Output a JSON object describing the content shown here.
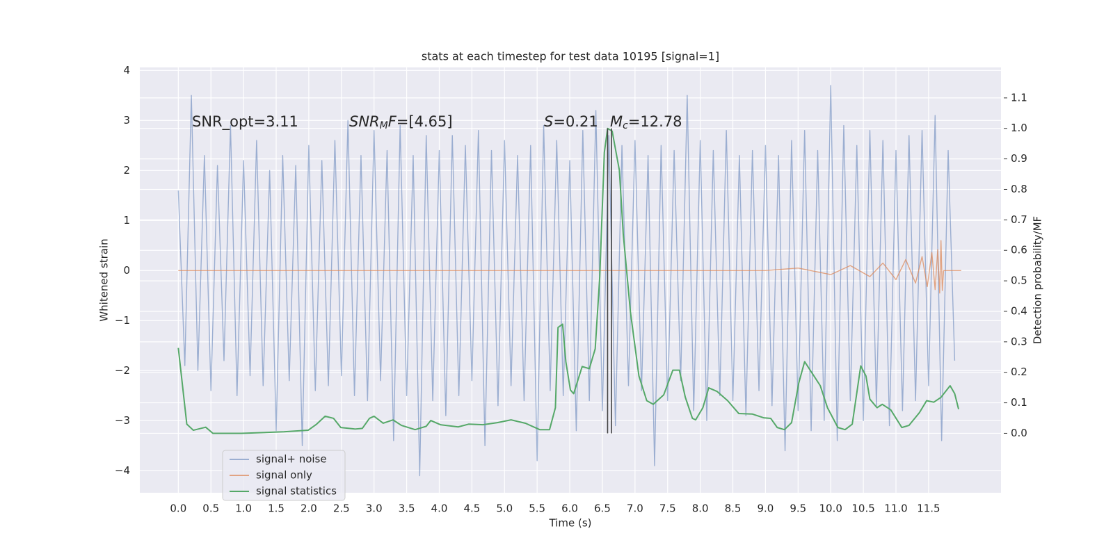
{
  "chart_data": {
    "type": "line",
    "title": "stats at each timestep for test data 10195 [signal=1]",
    "xlabel": "Time (s)",
    "ylabel": "Whitened strain",
    "y2label": "Detection probability/MF",
    "xlim": [
      -0.59,
      12.61
    ],
    "ylim": [
      -4.44,
      4.06
    ],
    "y2lim": [
      -0.195,
      1.2
    ],
    "xticks": [
      {
        "value": 0,
        "label": "0.0"
      },
      0.5,
      {
        "value": 1,
        "label": "1.0"
      },
      1.5,
      {
        "value": 2,
        "label": "2.0"
      },
      2.5,
      {
        "value": 3,
        "label": "3.0"
      },
      3.5,
      {
        "value": 4,
        "label": "4.0"
      },
      4.5,
      {
        "value": 5,
        "label": "5.0"
      },
      5.5,
      {
        "value": 6,
        "label": "6.0"
      },
      6.5,
      {
        "value": 7,
        "label": "7.0"
      },
      7.5,
      {
        "value": 8,
        "label": "8.0"
      },
      8.5,
      {
        "value": 9,
        "label": "9.0"
      },
      9.5,
      {
        "value": 10,
        "label": "10.0"
      },
      10.5,
      {
        "value": 11,
        "label": "11.0"
      },
      11.5
    ],
    "yticks": [
      {
        "value": -4,
        "label": "−4"
      },
      {
        "value": -3,
        "label": "−3"
      },
      {
        "value": -2,
        "label": "−2"
      },
      {
        "value": -1,
        "label": "−1"
      },
      0,
      1,
      2,
      3,
      4
    ],
    "y2ticks": [
      {
        "value": 0,
        "label": "0.0"
      },
      0.1,
      0.2,
      0.3,
      0.4,
      0.5,
      0.6,
      0.7,
      0.8,
      0.9,
      {
        "value": 1,
        "label": "1.0"
      },
      1.1
    ],
    "grid": true,
    "legend": "lower left",
    "series": [
      {
        "name": "signal+ noise",
        "color": "#4c72b0",
        "opacity": 0.5,
        "x": [
          0.0,
          0.1,
          0.2,
          0.3,
          0.4,
          0.5,
          0.6,
          0.7,
          0.8,
          0.9,
          1.0,
          1.1,
          1.2,
          1.3,
          1.4,
          1.5,
          1.6,
          1.7,
          1.8,
          1.9,
          2.0,
          2.1,
          2.2,
          2.3,
          2.4,
          2.5,
          2.6,
          2.7,
          2.8,
          2.9,
          3.0,
          3.1,
          3.2,
          3.3,
          3.4,
          3.5,
          3.6,
          3.7,
          3.8,
          3.9,
          4.0,
          4.1,
          4.2,
          4.3,
          4.4,
          4.5,
          4.6,
          4.7,
          4.8,
          4.9,
          5.0,
          5.1,
          5.2,
          5.3,
          5.4,
          5.5,
          5.6,
          5.7,
          5.8,
          5.9,
          6.0,
          6.1,
          6.2,
          6.3,
          6.4,
          6.5,
          6.6,
          6.7,
          6.8,
          6.9,
          7.0,
          7.1,
          7.2,
          7.3,
          7.4,
          7.5,
          7.6,
          7.7,
          7.8,
          7.9,
          8.0,
          8.1,
          8.2,
          8.3,
          8.4,
          8.5,
          8.6,
          8.7,
          8.8,
          8.9,
          9.0,
          9.1,
          9.2,
          9.3,
          9.4,
          9.5,
          9.6,
          9.7,
          9.8,
          9.9,
          10.0,
          10.1,
          10.2,
          10.3,
          10.4,
          10.5,
          10.6,
          10.7,
          10.8,
          10.9,
          11.0,
          11.1,
          11.2,
          11.3,
          11.4,
          11.5,
          11.6,
          11.7,
          11.8,
          11.9
        ],
        "values": [
          1.6,
          -1.9,
          3.5,
          -2.0,
          2.3,
          -2.4,
          2.1,
          -1.8,
          2.9,
          -2.5,
          2.2,
          -2.1,
          2.6,
          -2.3,
          2.0,
          -3.2,
          2.3,
          -2.2,
          2.1,
          -3.5,
          2.5,
          -2.4,
          2.2,
          -2.3,
          2.6,
          -2.1,
          3.0,
          -2.5,
          2.3,
          -2.6,
          2.8,
          -2.2,
          2.4,
          -3.4,
          2.9,
          -2.5,
          2.3,
          -4.1,
          2.7,
          -2.6,
          2.4,
          -2.9,
          2.7,
          -2.5,
          2.5,
          -2.2,
          2.8,
          -3.5,
          2.4,
          -2.7,
          2.6,
          -2.3,
          2.3,
          -2.6,
          2.5,
          -3.8,
          2.9,
          -2.4,
          2.6,
          -2.5,
          2.2,
          -3.2,
          2.8,
          -2.6,
          3.2,
          -2.8,
          2.7,
          -3.1,
          2.5,
          -2.3,
          2.6,
          -2.4,
          2.3,
          -3.9,
          2.5,
          -2.6,
          2.4,
          -2.2,
          3.5,
          -2.8,
          2.6,
          -3.0,
          2.4,
          -2.5,
          2.8,
          -2.6,
          2.3,
          -2.9,
          2.4,
          -2.4,
          2.5,
          -2.7,
          2.3,
          -3.6,
          2.6,
          -2.8,
          2.8,
          -3.2,
          2.4,
          -3.0,
          3.7,
          -3.4,
          2.9,
          -2.6,
          2.5,
          -3.0,
          2.8,
          -2.7,
          2.6,
          -3.1,
          2.4,
          -2.8,
          2.7,
          -2.6,
          2.8,
          -2.3,
          3.1,
          -3.4,
          2.4,
          -1.8
        ]
      },
      {
        "name": "signal only",
        "color": "#dd8452",
        "opacity": 0.7,
        "x": [
          0.0,
          9.0,
          9.5,
          10.0,
          10.3,
          10.6,
          10.8,
          11.0,
          11.15,
          11.3,
          11.4,
          11.48,
          11.55,
          11.6,
          11.64,
          11.67,
          11.69,
          11.71,
          11.73,
          12.0
        ],
        "values": [
          0,
          0,
          0.05,
          -0.08,
          0.1,
          -0.12,
          0.15,
          -0.18,
          0.22,
          -0.25,
          0.28,
          -0.32,
          0.36,
          -0.38,
          0.42,
          -0.45,
          0.6,
          -0.4,
          0,
          0
        ]
      },
      {
        "name": "signal statistics",
        "color": "#55a868",
        "opacity": 1,
        "axis": "y2",
        "x": [
          0.0,
          0.13,
          0.23,
          0.42,
          0.53,
          0.97,
          1.62,
          1.99,
          2.12,
          2.25,
          2.38,
          2.49,
          2.71,
          2.82,
          2.93,
          3.0,
          3.14,
          3.29,
          3.42,
          3.63,
          3.8,
          3.87,
          4.02,
          4.29,
          4.45,
          4.67,
          4.89,
          5.1,
          5.32,
          5.54,
          5.69,
          5.78,
          5.82,
          5.89,
          5.94,
          6.01,
          6.06,
          6.19,
          6.3,
          6.39,
          6.46,
          6.53,
          6.58,
          6.65,
          6.76,
          6.82,
          6.93,
          7.06,
          7.18,
          7.28,
          7.44,
          7.58,
          7.68,
          7.77,
          7.88,
          7.93,
          8.04,
          8.13,
          8.26,
          8.42,
          8.59,
          8.8,
          8.97,
          9.08,
          9.18,
          9.29,
          9.4,
          9.51,
          9.6,
          9.67,
          9.84,
          9.95,
          10.11,
          10.22,
          10.33,
          10.46,
          10.54,
          10.6,
          10.71,
          10.79,
          10.92,
          11.09,
          11.2,
          11.36,
          11.47,
          11.58,
          11.69,
          11.83,
          11.9,
          11.96
        ],
        "values": [
          0.28,
          0.03,
          0.01,
          0.02,
          0.0,
          0.0,
          0.005,
          0.01,
          0.03,
          0.056,
          0.049,
          0.019,
          0.014,
          0.016,
          0.049,
          0.056,
          0.033,
          0.044,
          0.026,
          0.012,
          0.023,
          0.042,
          0.028,
          0.021,
          0.03,
          0.028,
          0.035,
          0.044,
          0.033,
          0.012,
          0.012,
          0.084,
          0.347,
          0.358,
          0.235,
          0.142,
          0.13,
          0.219,
          0.212,
          0.277,
          0.514,
          0.921,
          1.0,
          0.991,
          0.863,
          0.653,
          0.398,
          0.188,
          0.107,
          0.095,
          0.126,
          0.207,
          0.207,
          0.119,
          0.049,
          0.044,
          0.084,
          0.149,
          0.137,
          0.107,
          0.065,
          0.063,
          0.051,
          0.049,
          0.019,
          0.012,
          0.035,
          0.165,
          0.235,
          0.212,
          0.156,
          0.084,
          0.019,
          0.012,
          0.03,
          0.221,
          0.188,
          0.112,
          0.084,
          0.095,
          0.077,
          0.019,
          0.026,
          0.068,
          0.107,
          0.102,
          0.118,
          0.156,
          0.13,
          0.079
        ]
      }
    ],
    "vlines": {
      "x": [
        6.58,
        6.64
      ],
      "ymin": 0,
      "ymax": 1,
      "color": "#444444",
      "axis": "y2"
    },
    "annotations": [
      {
        "parts": [
          {
            "text": "SNR_opt=3.11"
          }
        ]
      },
      {
        "parts": [
          {
            "text": "SNR",
            "style": "italic"
          },
          {
            "text": "M",
            "style": "sub"
          },
          {
            "text": "F",
            "style": "italic"
          },
          {
            "text": "=[4.65]"
          }
        ]
      },
      {
        "parts": [
          {
            "text": "S",
            "style": "italic"
          },
          {
            "text": "=0.21"
          }
        ]
      },
      {
        "parts": [
          {
            "text": "M",
            "style": "italic"
          },
          {
            "text": "c",
            "style": "sub"
          },
          {
            "text": "=12.78"
          }
        ]
      }
    ]
  }
}
